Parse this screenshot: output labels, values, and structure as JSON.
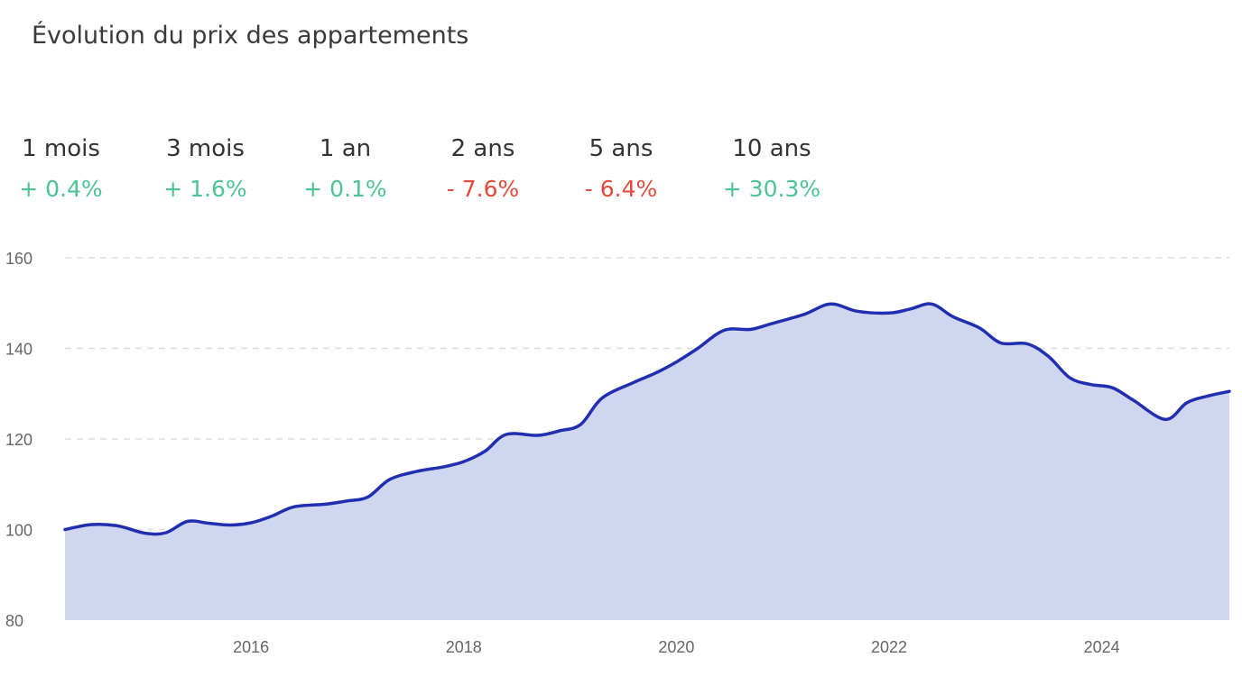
{
  "title": "Évolution du prix des appartements",
  "stats": [
    {
      "period": "1 mois",
      "change": "+ 0.4%",
      "direction": "up"
    },
    {
      "period": "3 mois",
      "change": "+ 1.6%",
      "direction": "up"
    },
    {
      "period": "1 an",
      "change": "+ 0.1%",
      "direction": "up"
    },
    {
      "period": "2 ans",
      "change": "- 7.6%",
      "direction": "down"
    },
    {
      "period": "5 ans",
      "change": "- 6.4%",
      "direction": "down"
    },
    {
      "period": "10 ans",
      "change": "+ 30.3%",
      "direction": "up"
    }
  ],
  "colors": {
    "positive": "#4cc394",
    "negative": "#e24a3b",
    "line": "#1f2fb0",
    "area": "#d0d6f0",
    "grid": "#dddddd"
  },
  "chart_data": {
    "type": "area",
    "title": "",
    "xlabel": "",
    "ylabel": "",
    "ylim": [
      80,
      160
    ],
    "xlim": [
      2014.25,
      2025.2
    ],
    "yticks": [
      80,
      100,
      120,
      140,
      160
    ],
    "xticks": [
      2016,
      2018,
      2020,
      2022,
      2024
    ],
    "grid": true,
    "series": [
      {
        "x": [
          2014.25,
          2014.5,
          2014.75,
          2015.0,
          2015.2,
          2015.4,
          2015.6,
          2015.8,
          2016.0,
          2016.2,
          2016.4,
          2016.7,
          2016.9,
          2017.1,
          2017.3,
          2017.55,
          2017.8,
          2018.0,
          2018.2,
          2018.4,
          2018.7,
          2018.9,
          2019.1,
          2019.3,
          2019.6,
          2019.8,
          2020.0,
          2020.2,
          2020.45,
          2020.7,
          2020.9,
          2021.2,
          2021.45,
          2021.7,
          2022.0,
          2022.2,
          2022.4,
          2022.6,
          2022.85,
          2023.05,
          2023.3,
          2023.5,
          2023.7,
          2023.9,
          2024.1,
          2024.3,
          2024.6,
          2024.8,
          2025.0,
          2025.2
        ],
        "values": [
          100,
          101.1,
          100.8,
          99.2,
          99.3,
          101.8,
          101.4,
          101.0,
          101.5,
          103.0,
          105.0,
          105.6,
          106.3,
          107.2,
          111.0,
          112.8,
          113.8,
          115.0,
          117.3,
          121.0,
          120.8,
          121.8,
          123.2,
          129.0,
          132.5,
          134.5,
          137.0,
          140.0,
          144.0,
          144.2,
          145.5,
          147.5,
          149.8,
          148.2,
          147.8,
          148.7,
          149.8,
          147.0,
          144.5,
          141.2,
          141.0,
          138.2,
          133.5,
          132.0,
          131.3,
          128.5,
          124.3,
          128.0,
          129.5,
          130.5
        ]
      }
    ]
  }
}
